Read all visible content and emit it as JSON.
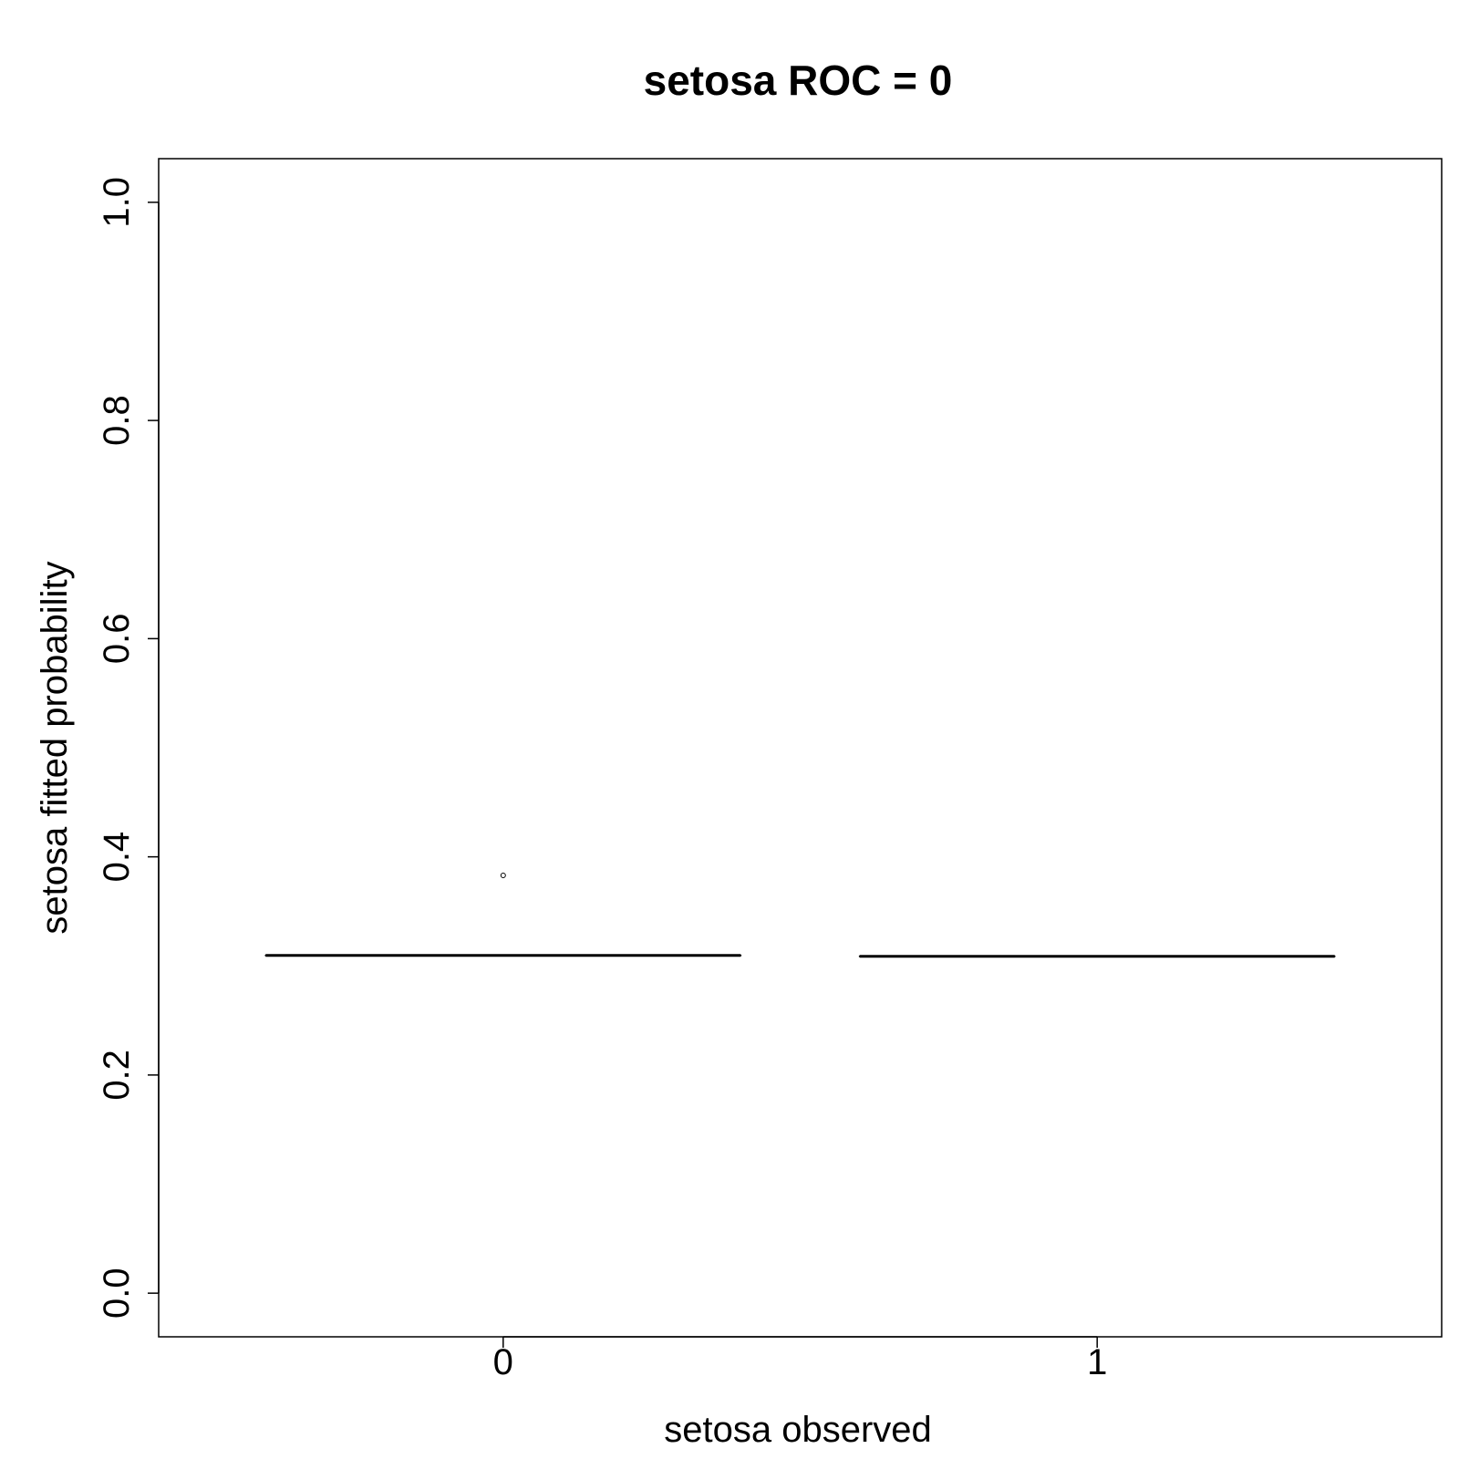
{
  "chart_data": {
    "type": "boxplot",
    "title": "setosa ROC = 0",
    "xlabel": "setosa observed",
    "ylabel": "setosa fitted probability",
    "categories": [
      "0",
      "1"
    ],
    "ylim": [
      -0.04,
      1.04
    ],
    "yticks": [
      "0.0",
      "0.2",
      "0.4",
      "0.6",
      "0.8",
      "1.0"
    ],
    "grid": false,
    "boxes": [
      {
        "category": "0",
        "min": 0.3096,
        "q1": 0.3096,
        "median": 0.3096,
        "q3": 0.3096,
        "max": 0.3096,
        "outliers": [
          0.383
        ]
      },
      {
        "category": "1",
        "min": 0.3088,
        "q1": 0.3088,
        "median": 0.3088,
        "q3": 0.3088,
        "max": 0.3088,
        "outliers": []
      }
    ]
  }
}
